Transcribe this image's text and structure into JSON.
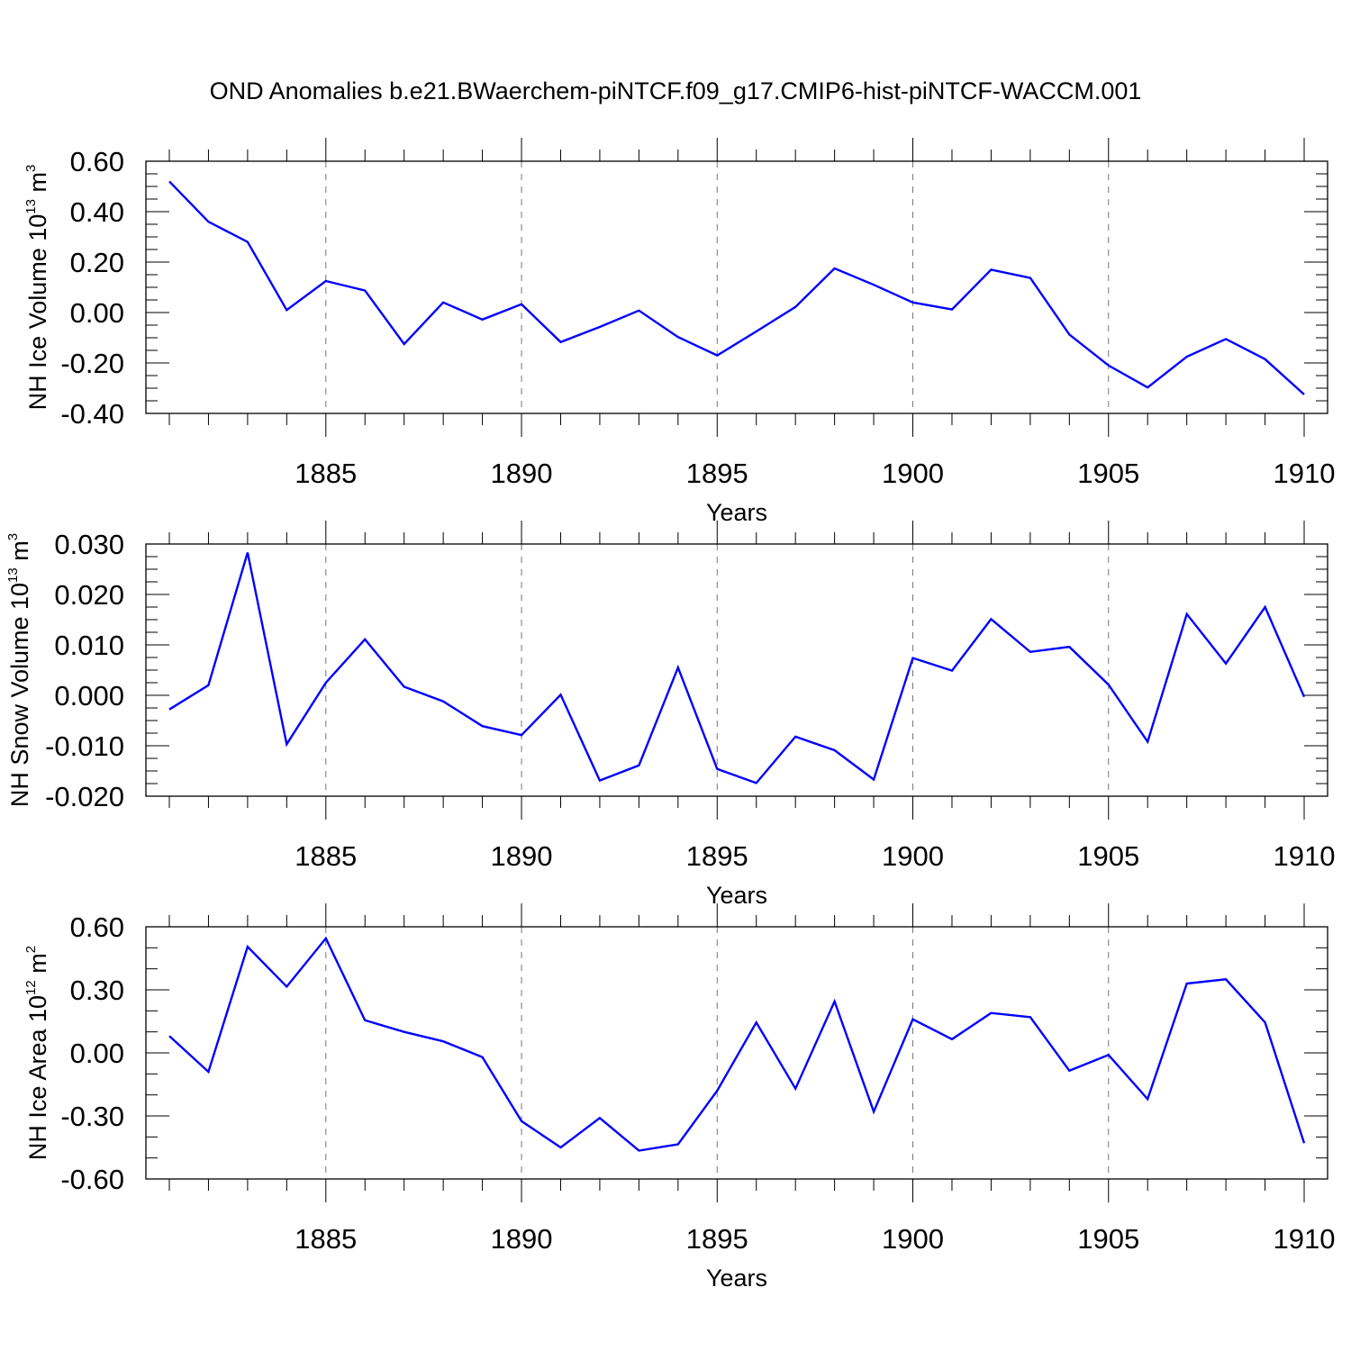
{
  "title": "OND Anomalies b.e21.BWaerchem-piNTCF.f09_g17.CMIP6-hist-piNTCF-WACCM.001",
  "line_color": "#0000ff",
  "chart_data": [
    {
      "type": "line",
      "ylabel": "NH Ice Volume",
      "yunit_base": "10",
      "yunit_exp": "13",
      "yunit_tail": "m",
      "yunit_tail_exp": "3",
      "xlabel": "Years",
      "xlim": [
        1881,
        1910
      ],
      "ylim": [
        -0.4,
        0.6
      ],
      "yticks": [
        -0.4,
        -0.2,
        0.0,
        0.2,
        0.4,
        0.6
      ],
      "ytick_labels": [
        "-0.40",
        "-0.20",
        "0.00",
        "0.20",
        "0.40",
        "0.60"
      ],
      "yminor_step": 0.05,
      "xticks": [
        1885,
        1890,
        1895,
        1900,
        1905,
        1910
      ],
      "xtick_labels": [
        "1885",
        "1890",
        "1895",
        "1900",
        "1905",
        "1910"
      ],
      "x": [
        1881,
        1882,
        1883,
        1884,
        1885,
        1886,
        1887,
        1888,
        1889,
        1890,
        1891,
        1892,
        1893,
        1894,
        1895,
        1896,
        1897,
        1898,
        1899,
        1900,
        1901,
        1902,
        1903,
        1904,
        1905,
        1906,
        1907,
        1908,
        1909,
        1910
      ],
      "values": [
        0.52,
        0.36,
        0.28,
        0.01,
        0.125,
        0.087,
        -0.125,
        0.04,
        -0.028,
        0.033,
        -0.117,
        -0.057,
        0.008,
        -0.097,
        -0.17,
        -0.075,
        0.022,
        0.175,
        0.11,
        0.04,
        0.012,
        0.17,
        0.137,
        -0.087,
        -0.21,
        -0.297,
        -0.175,
        -0.105,
        -0.185,
        -0.325
      ]
    },
    {
      "type": "line",
      "ylabel": "NH Snow Volume",
      "yunit_base": "10",
      "yunit_exp": "13",
      "yunit_tail": "m",
      "yunit_tail_exp": "3",
      "xlabel": "Years",
      "xlim": [
        1881,
        1910
      ],
      "ylim": [
        -0.02,
        0.03
      ],
      "yticks": [
        -0.02,
        -0.01,
        0.0,
        0.01,
        0.02,
        0.03
      ],
      "ytick_labels": [
        "-0.020",
        "-0.010",
        "0.000",
        "0.010",
        "0.020",
        "0.030"
      ],
      "yminor_step": 0.0025,
      "xticks": [
        1885,
        1890,
        1895,
        1900,
        1905,
        1910
      ],
      "xtick_labels": [
        "1885",
        "1890",
        "1895",
        "1900",
        "1905",
        "1910"
      ],
      "x": [
        1881,
        1882,
        1883,
        1884,
        1885,
        1886,
        1887,
        1888,
        1889,
        1890,
        1891,
        1892,
        1893,
        1894,
        1895,
        1896,
        1897,
        1898,
        1899,
        1900,
        1901,
        1902,
        1903,
        1904,
        1905,
        1906,
        1907,
        1908,
        1909,
        1910
      ],
      "values": [
        -0.0028,
        0.002,
        0.0283,
        -0.0097,
        0.0025,
        0.0111,
        0.0017,
        -0.0012,
        -0.0061,
        -0.0079,
        0.0001,
        -0.0169,
        -0.0139,
        0.0055,
        -0.0146,
        -0.0174,
        -0.0082,
        -0.0109,
        -0.0167,
        0.0074,
        0.0049,
        0.0151,
        0.0086,
        0.0096,
        0.0021,
        -0.0092,
        0.0161,
        0.0063,
        0.0175,
        -0.0003
      ]
    },
    {
      "type": "line",
      "ylabel": "NH Ice Area",
      "yunit_base": "10",
      "yunit_exp": "12",
      "yunit_tail": "m",
      "yunit_tail_exp": "2",
      "xlabel": "Years",
      "xlim": [
        1881,
        1910
      ],
      "ylim": [
        -0.6,
        0.6
      ],
      "yticks": [
        -0.6,
        -0.3,
        0.0,
        0.3,
        0.6
      ],
      "ytick_labels": [
        "-0.60",
        "-0.30",
        "0.00",
        "0.30",
        "0.60"
      ],
      "yminor_step": 0.1,
      "xticks": [
        1885,
        1890,
        1895,
        1900,
        1905,
        1910
      ],
      "xtick_labels": [
        "1885",
        "1890",
        "1895",
        "1900",
        "1905",
        "1910"
      ],
      "x": [
        1881,
        1882,
        1883,
        1884,
        1885,
        1886,
        1887,
        1888,
        1889,
        1890,
        1891,
        1892,
        1893,
        1894,
        1895,
        1896,
        1897,
        1898,
        1899,
        1900,
        1901,
        1902,
        1903,
        1904,
        1905,
        1906,
        1907,
        1908,
        1909,
        1910
      ],
      "values": [
        0.08,
        -0.09,
        0.505,
        0.315,
        0.545,
        0.155,
        0.1,
        0.055,
        -0.02,
        -0.325,
        -0.45,
        -0.31,
        -0.465,
        -0.435,
        -0.18,
        0.145,
        -0.17,
        0.245,
        -0.28,
        0.16,
        0.065,
        0.19,
        0.17,
        -0.085,
        -0.01,
        -0.22,
        0.33,
        0.35,
        0.145,
        -0.43
      ]
    }
  ]
}
